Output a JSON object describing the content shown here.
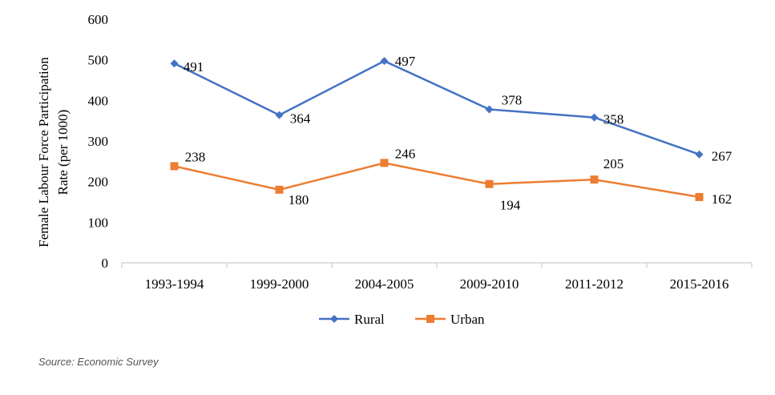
{
  "chart_data": {
    "type": "line",
    "categories": [
      "1993-1994",
      "1999-2000",
      "2004-2005",
      "2009-2010",
      "2011-2012",
      "2015-2016"
    ],
    "series": [
      {
        "name": "Rural",
        "values": [
          491,
          364,
          497,
          378,
          358,
          267
        ],
        "color": "#4472C4",
        "marker": "diamond"
      },
      {
        "name": "Urban",
        "values": [
          238,
          180,
          246,
          194,
          205,
          162
        ],
        "color": "#ED7D31",
        "marker": "square"
      }
    ],
    "ylabel_lines": [
      "Female Labour Force Participation",
      "Rate (per 1000)"
    ],
    "ylim": [
      0,
      600
    ],
    "yticks": [
      0,
      100,
      200,
      300,
      400,
      500,
      600
    ],
    "grid": false,
    "legend_position": "bottom",
    "data_labels": true
  },
  "source": "Source: Economic Survey"
}
